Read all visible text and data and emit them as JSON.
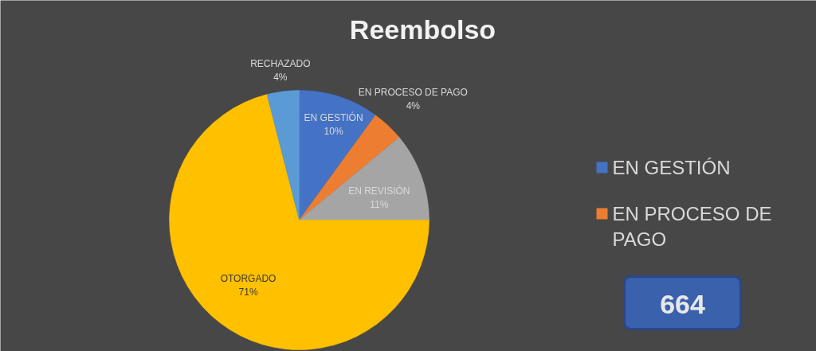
{
  "chart_data": {
    "type": "pie",
    "title": "Reembolso",
    "categories": [
      "EN GESTIÓN",
      "EN PROCESO DE PAGO",
      "EN REVISIÓN",
      "OTORGADO",
      "RECHAZADO"
    ],
    "values": [
      10,
      4,
      11,
      71,
      4
    ],
    "colors": [
      "#4472c4",
      "#ed7d31",
      "#a5a5a5",
      "#ffc000",
      "#5b9bd5"
    ],
    "value_labels": [
      "10%",
      "4%",
      "11%",
      "71%",
      "4%"
    ],
    "legend": "right",
    "annotations": [
      "664"
    ]
  }
}
